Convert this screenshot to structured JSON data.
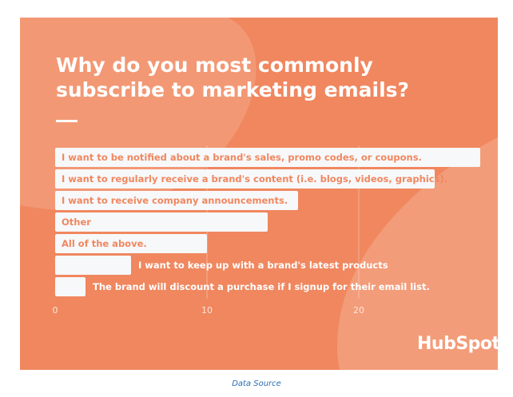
{
  "chart_data": {
    "type": "bar",
    "orientation": "horizontal",
    "title": "Why do you most commonly subscribe to marketing emails?",
    "categories": [
      "I want to be notified about a brand's sales, promo codes, or coupons.",
      "I want to regularly receive a brand's content (i.e. blogs, videos, graphics).",
      "I want to receive company announcements.",
      "Other",
      "All of the above.",
      "I want to keep up with a brand's latest products",
      "The brand will discount a purchase if I signup for their email list."
    ],
    "values": [
      28,
      25,
      16,
      14,
      10,
      5,
      2
    ],
    "xticks": [
      "0",
      "10",
      "20"
    ],
    "xlim": [
      0,
      28
    ],
    "grid": "vertical",
    "colors": {
      "background": "#f0875f",
      "bar": "#f7f8fa",
      "label_inside": "#f0875f",
      "label_outside": "#ffffff"
    }
  },
  "logo": "HubSpot",
  "footer": {
    "link": "Data Source"
  }
}
